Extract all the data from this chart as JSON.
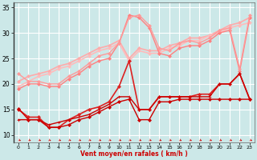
{
  "xlabel": "Vent moyen/en rafales ( km/h )",
  "bg_color": "#cce8e8",
  "grid_color": "#ffffff",
  "xlim": [
    -0.5,
    23.5
  ],
  "ylim": [
    8.5,
    36.0
  ],
  "yticks": [
    10,
    15,
    20,
    25,
    30,
    35
  ],
  "xticks": [
    0,
    1,
    2,
    3,
    4,
    5,
    6,
    7,
    8,
    9,
    10,
    11,
    12,
    13,
    14,
    15,
    16,
    17,
    18,
    19,
    20,
    21,
    22,
    23
  ],
  "lines": [
    {
      "y": [
        15.2,
        13.0,
        13.0,
        11.5,
        11.5,
        12.0,
        13.0,
        13.5,
        14.5,
        15.5,
        16.5,
        17.0,
        13.0,
        13.0,
        16.5,
        16.5,
        17.0,
        17.0,
        17.0,
        17.0,
        17.0,
        17.0,
        17.0,
        17.0
      ],
      "color": "#cc0000",
      "lw": 1.0,
      "marker": "D",
      "ms": 2.0,
      "zorder": 5
    },
    {
      "y": [
        13.0,
        13.0,
        13.0,
        12.0,
        12.5,
        13.0,
        13.5,
        14.0,
        15.0,
        16.0,
        17.5,
        17.5,
        15.0,
        15.0,
        17.5,
        17.5,
        17.5,
        17.5,
        17.5,
        17.5,
        20.0,
        20.0,
        22.0,
        17.0
      ],
      "color": "#cc0000",
      "lw": 1.0,
      "marker": "+",
      "ms": 3.5,
      "zorder": 5
    },
    {
      "y": [
        15.0,
        13.5,
        13.5,
        11.5,
        11.5,
        13.0,
        14.0,
        15.0,
        15.5,
        16.5,
        19.5,
        24.5,
        15.0,
        15.0,
        17.5,
        17.5,
        17.5,
        17.5,
        18.0,
        18.0,
        20.0,
        20.0,
        22.0,
        17.0
      ],
      "color": "#dd2222",
      "lw": 1.2,
      "marker": "D",
      "ms": 2.0,
      "zorder": 4
    },
    {
      "y": [
        19.0,
        20.0,
        20.0,
        19.5,
        19.5,
        21.0,
        22.0,
        23.5,
        24.5,
        25.0,
        28.0,
        33.5,
        33.0,
        31.0,
        26.0,
        25.5,
        27.0,
        27.5,
        27.5,
        28.5,
        30.0,
        30.5,
        22.5,
        33.0
      ],
      "color": "#ff8080",
      "lw": 1.0,
      "marker": "D",
      "ms": 2.0,
      "zorder": 3
    },
    {
      "y": [
        22.0,
        20.5,
        20.5,
        20.0,
        20.0,
        21.5,
        22.5,
        24.0,
        25.5,
        26.0,
        28.0,
        33.0,
        33.5,
        31.5,
        27.0,
        26.5,
        28.0,
        28.5,
        28.0,
        29.0,
        30.5,
        31.0,
        23.0,
        33.5
      ],
      "color": "#ff9999",
      "lw": 1.0,
      "marker": "D",
      "ms": 2.0,
      "zorder": 3
    },
    {
      "y": [
        20.5,
        21.5,
        22.0,
        22.5,
        23.5,
        24.0,
        25.0,
        26.0,
        27.0,
        27.5,
        28.5,
        25.0,
        27.0,
        26.5,
        26.5,
        27.5,
        28.0,
        29.0,
        29.0,
        29.5,
        30.5,
        31.5,
        32.0,
        33.0
      ],
      "color": "#ffaaaa",
      "lw": 1.2,
      "marker": "D",
      "ms": 2.0,
      "zorder": 2
    },
    {
      "y": [
        19.5,
        20.5,
        21.5,
        22.0,
        23.0,
        23.5,
        24.5,
        25.5,
        26.5,
        27.0,
        28.0,
        24.5,
        26.5,
        26.0,
        26.0,
        27.0,
        27.5,
        28.5,
        28.5,
        29.5,
        30.0,
        31.0,
        31.5,
        32.0
      ],
      "color": "#ffbbbb",
      "lw": 1.2,
      "marker": "D",
      "ms": 2.0,
      "zorder": 2
    }
  ]
}
